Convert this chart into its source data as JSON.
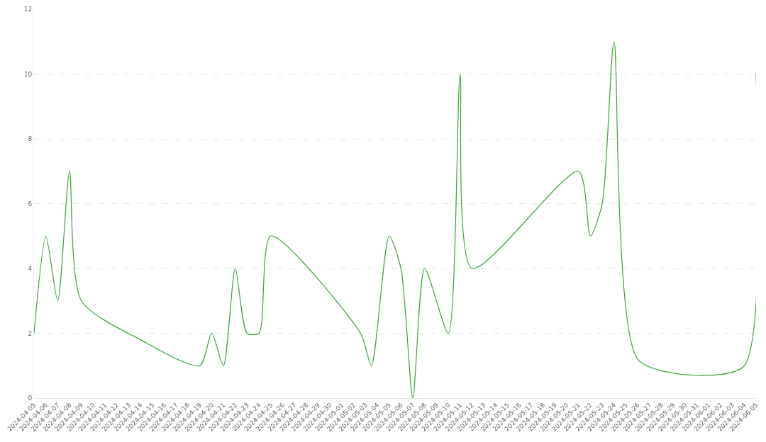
{
  "chart_data": {
    "type": "line",
    "x": [
      "2024-04-05",
      "2024-04-06",
      "2024-04-07",
      "2024-04-08",
      "2024-04-09",
      "2024-04-14",
      "2024-04-19",
      "2024-04-20",
      "2024-04-21",
      "2024-04-22",
      "2024-04-23",
      "2024-04-24",
      "2024-04-25",
      "2024-05-02T14:00",
      "2024-05-03T12:00",
      "2024-05-05",
      "2024-05-06",
      "2024-05-07",
      "2024-05-08",
      "2024-05-10",
      "2024-05-11",
      "2024-05-12",
      "2024-05-21",
      "2024-05-22",
      "2024-05-23",
      "2024-05-24",
      "2024-05-26",
      "2024-05-31",
      "2024-06-04",
      "2024-06-05"
    ],
    "series": [
      {
        "color": "#3ba23b",
        "values": [
          2,
          5,
          3,
          7,
          3,
          1.8,
          1,
          2,
          1,
          4,
          2,
          2,
          5,
          2,
          1,
          5,
          4,
          0,
          4,
          2,
          10,
          4,
          7,
          5,
          6,
          11,
          1.2,
          0.7,
          1.0,
          10
        ]
      }
    ],
    "xlim": [
      "2024-04-05",
      "2024-06-05"
    ],
    "xticks": [
      {
        "value": "2024-04-05",
        "label": "2024-04-05"
      },
      {
        "value": "2024-04-06",
        "label": "2024-04-06"
      },
      {
        "value": "2024-04-07",
        "label": "2024-04-07"
      },
      {
        "value": "2024-04-08",
        "label": "2024-04-08"
      },
      {
        "value": "2024-04-09",
        "label": "2024-04-09"
      },
      {
        "value": "2024-04-10",
        "label": "2024-04-10"
      },
      {
        "value": "2024-04-11",
        "label": "2024-04-11"
      },
      {
        "value": "2024-04-12",
        "label": "2024-04-12"
      },
      {
        "value": "2024-04-13",
        "label": "2024-04-13"
      },
      {
        "value": "2024-04-14",
        "label": "2024-04-14"
      },
      {
        "value": "2024-04-15",
        "label": "2024-04-15"
      },
      {
        "value": "2024-04-16",
        "label": "2024-04-16"
      },
      {
        "value": "2024-04-17",
        "label": "2024-04-17"
      },
      {
        "value": "2024-04-18",
        "label": "2024-04-18"
      },
      {
        "value": "2024-04-19",
        "label": "2024-04-19"
      },
      {
        "value": "2024-04-20",
        "label": "2024-04-20"
      },
      {
        "value": "2024-04-21",
        "label": "2024-04-21"
      },
      {
        "value": "2024-04-22",
        "label": "2024-04-22"
      },
      {
        "value": "2024-04-23",
        "label": "2024-04-23"
      },
      {
        "value": "2024-04-24",
        "label": "2024-04-24"
      },
      {
        "value": "2024-04-25",
        "label": "2024-04-25"
      },
      {
        "value": "2024-04-26",
        "label": "2024-04-26"
      },
      {
        "value": "2024-04-27",
        "label": "2024-04-27"
      },
      {
        "value": "2024-04-28",
        "label": "2024-04-28"
      },
      {
        "value": "2024-04-29",
        "label": "2024-04-29"
      },
      {
        "value": "2024-04-30",
        "label": "2024-04-30"
      },
      {
        "value": "2024-05-01",
        "label": "2024-05-01"
      },
      {
        "value": "2024-05-02",
        "label": "2024-05-02"
      },
      {
        "value": "2024-05-03",
        "label": "2024-05-03"
      },
      {
        "value": "2024-05-04",
        "label": "2024-05-04"
      },
      {
        "value": "2024-05-05",
        "label": "2024-05-05"
      },
      {
        "value": "2024-05-06",
        "label": "2024-05-06"
      },
      {
        "value": "2024-05-07",
        "label": "2024-05-07"
      },
      {
        "value": "2024-05-08",
        "label": "2024-05-08"
      },
      {
        "value": "2024-05-09",
        "label": "2024-05-09"
      },
      {
        "value": "2024-05-10",
        "label": "2024-05-10"
      },
      {
        "value": "2024-05-11",
        "label": "2024-05-11"
      },
      {
        "value": "2024-05-12",
        "label": "2024-05-12"
      },
      {
        "value": "2024-05-13",
        "label": "2024-05-13"
      },
      {
        "value": "2024-05-14",
        "label": "2024-05-14"
      },
      {
        "value": "2024-05-15",
        "label": "2024-05-15"
      },
      {
        "value": "2024-05-16",
        "label": "2024-05-16"
      },
      {
        "value": "2024-05-17",
        "label": "2024-05-17"
      },
      {
        "value": "2024-05-18",
        "label": "2024-05-18"
      },
      {
        "value": "2024-05-19",
        "label": "2024-05-19"
      },
      {
        "value": "2024-05-20",
        "label": "2024-05-20"
      },
      {
        "value": "2024-05-21",
        "label": "2024-05-21"
      },
      {
        "value": "2024-05-22",
        "label": "2024-05-22"
      },
      {
        "value": "2024-05-23",
        "label": "2024-05-23"
      },
      {
        "value": "2024-05-24",
        "label": "2024-05-24"
      },
      {
        "value": "2024-05-25",
        "label": "2024-05-25"
      },
      {
        "value": "2024-05-26",
        "label": "2024-05-26"
      },
      {
        "value": "2024-05-27",
        "label": "2024-05-27"
      },
      {
        "value": "2024-05-28",
        "label": "2024-05-28"
      },
      {
        "value": "2024-05-29",
        "label": "2024-05-29"
      },
      {
        "value": "2024-05-30",
        "label": "2024-05-30"
      },
      {
        "value": "2024-05-31",
        "label": "2024-05-31"
      },
      {
        "value": "2024-06-01",
        "label": "2024-06-01"
      },
      {
        "value": "2024-06-02",
        "label": "2024-06-02"
      },
      {
        "value": "2024-06-03",
        "label": "2024-06-03"
      },
      {
        "value": "2024-06-04",
        "label": "2024-06-04"
      },
      {
        "value": "2024-06-05",
        "label": "2024-06-05"
      }
    ],
    "ylim": [
      0,
      12
    ],
    "yticks": [
      0,
      2,
      4,
      6,
      8,
      10,
      12
    ],
    "grid": "y",
    "marker": "none",
    "line_style": "solid"
  }
}
